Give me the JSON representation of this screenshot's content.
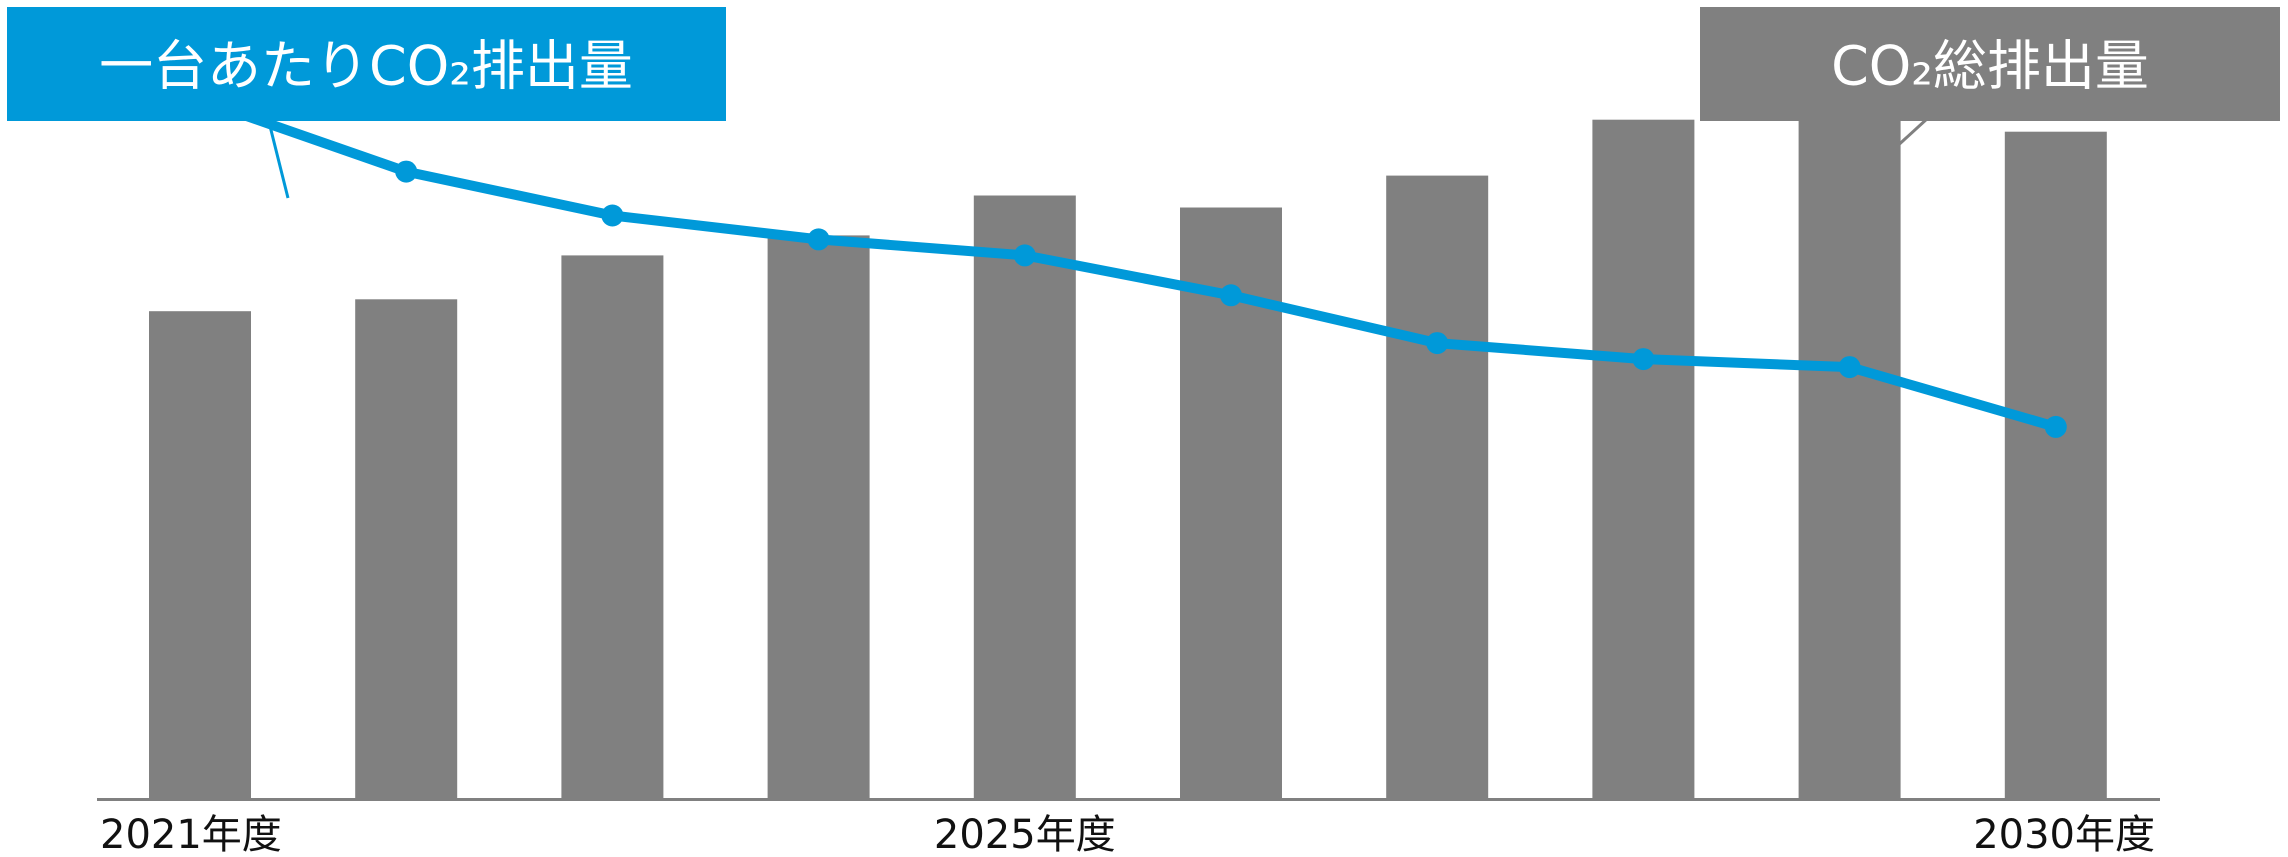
{
  "chart_data": {
    "type": "bar",
    "categories": [
      "2021年度",
      "",
      "",
      "",
      "2025年度",
      "",
      "",
      "",
      "",
      "2030年度"
    ],
    "tick_labels": [
      "2021年度",
      "2025年度",
      "2030年度"
    ],
    "series": [
      {
        "name": "CO₂総排出量",
        "type": "bar",
        "color": "#808080",
        "values": [
          61,
          62.5,
          68,
          70.5,
          75.5,
          74,
          78,
          85,
          87.5,
          83.5
        ]
      },
      {
        "name": "一台あたりCO₂排出量",
        "type": "line",
        "color": "#0099d9",
        "values": [
          87.5,
          78.5,
          73,
          70,
          68,
          63,
          57,
          55,
          54,
          46.5
        ]
      }
    ],
    "ylim": [
      0,
      100
    ],
    "grid": false,
    "colors": {
      "bar": "#808080",
      "line": "#0099d9",
      "axis": "#808080"
    }
  }
}
